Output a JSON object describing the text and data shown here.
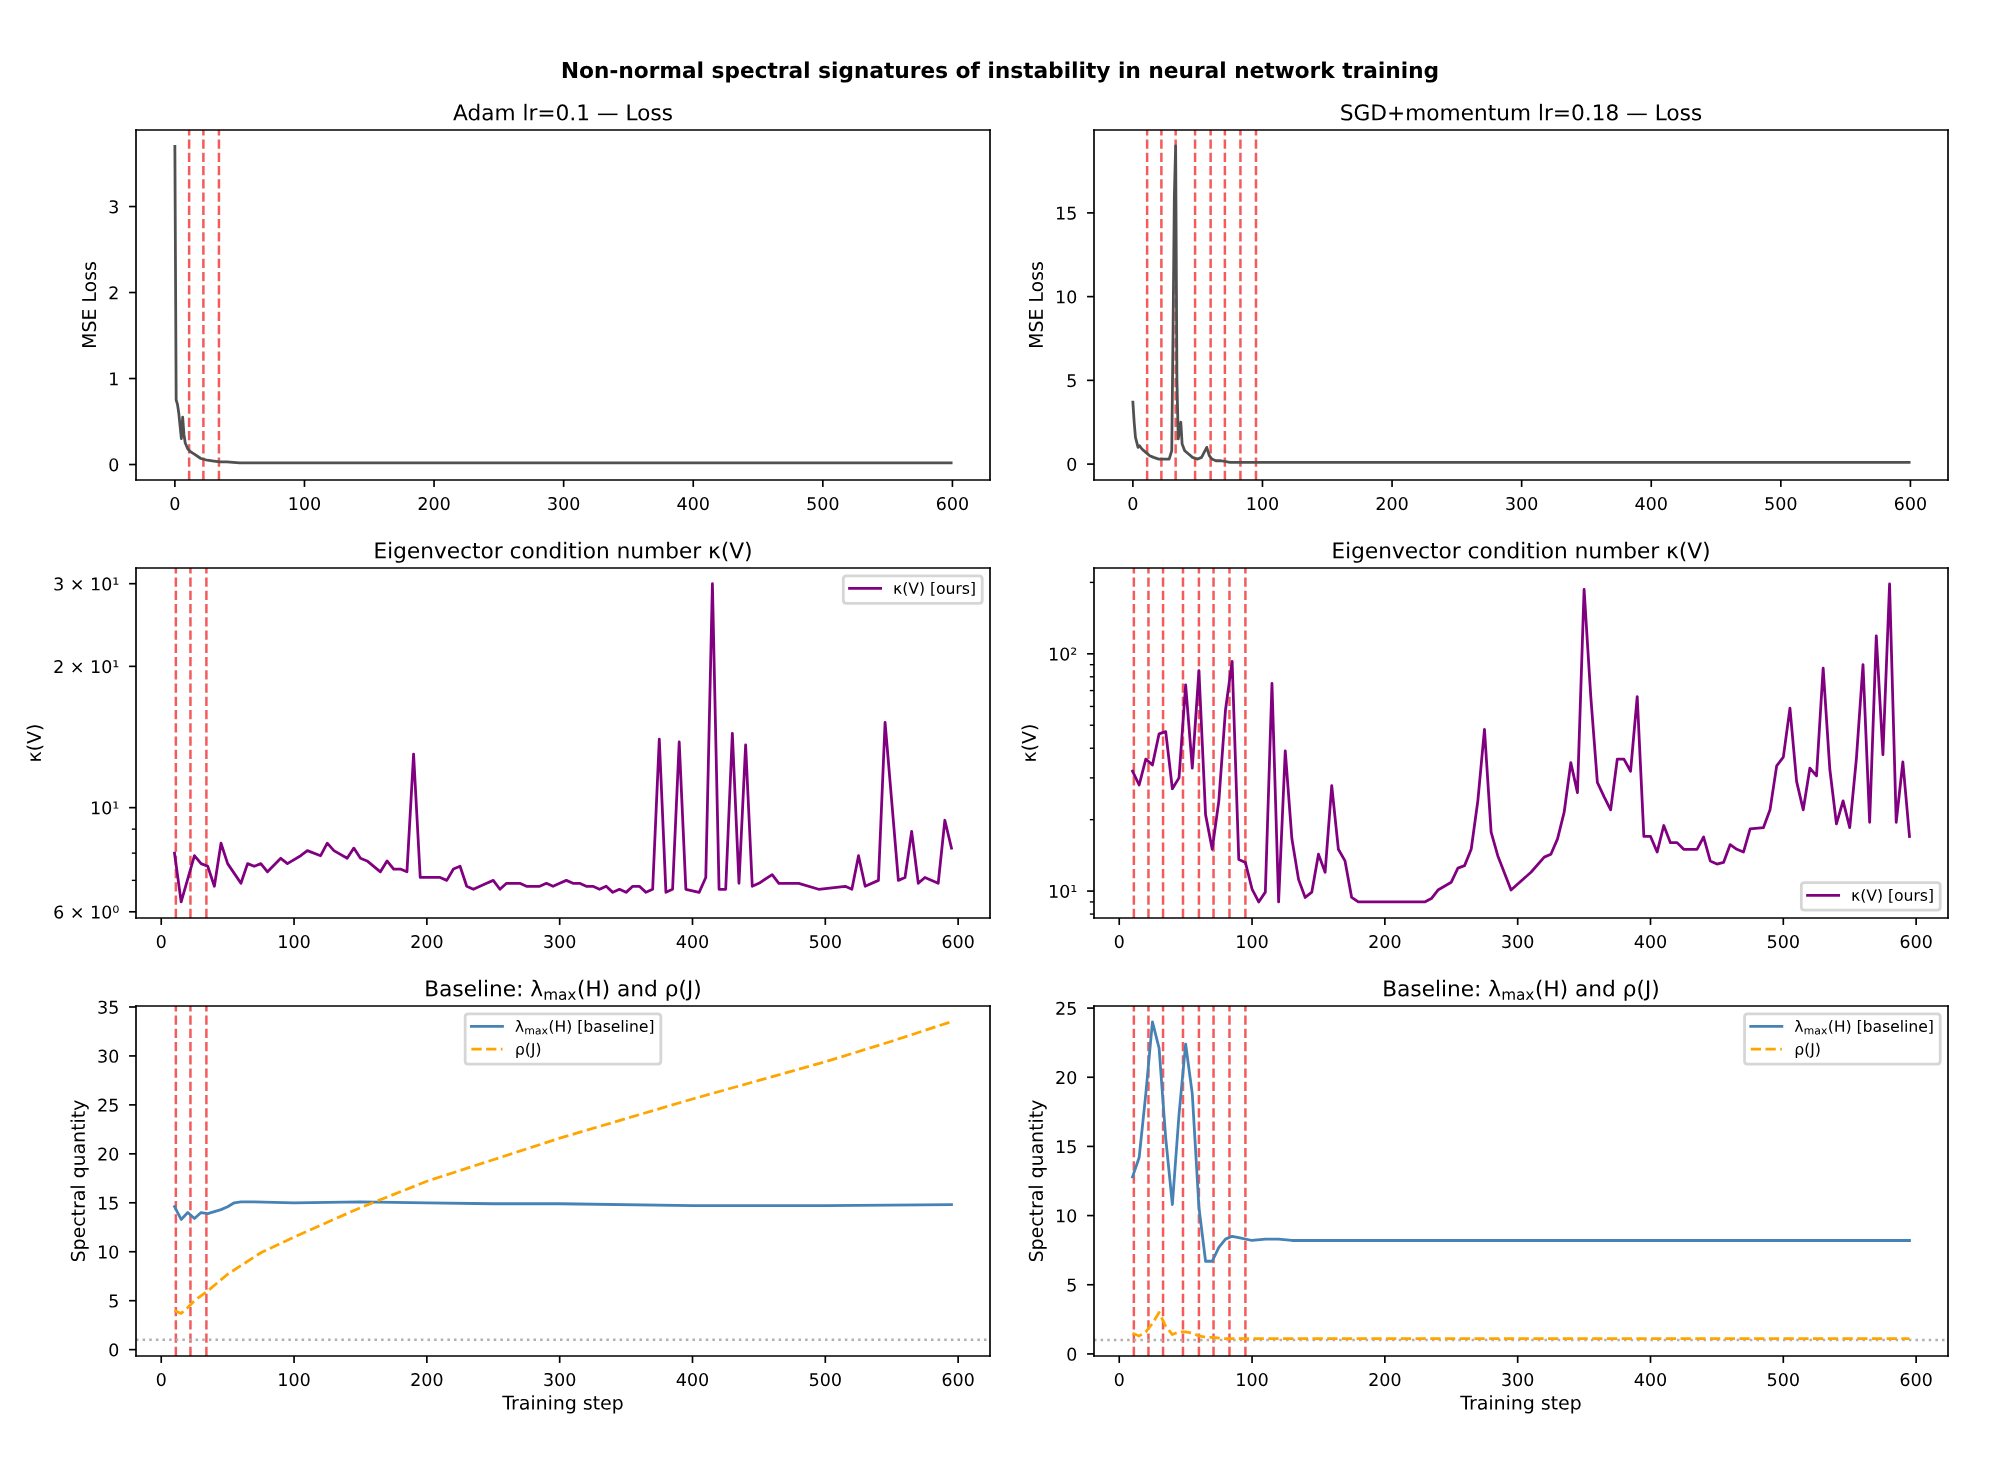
{
  "chart_data": [
    {
      "type": "other",
      "title": "Non-normal spectral signatures of instability in neural network training"
    },
    {
      "type": "line",
      "title": "Adam lr=0.1 — Loss",
      "ylabel": "MSE Loss",
      "color": "#505050",
      "x": [
        0,
        1,
        2,
        3,
        4,
        5,
        6,
        7,
        8,
        10,
        12,
        15,
        18,
        20,
        25,
        30,
        35,
        40,
        50,
        75,
        100,
        200,
        300,
        400,
        500,
        599
      ],
      "values": [
        3.7,
        0.75,
        0.7,
        0.6,
        0.45,
        0.3,
        0.55,
        0.35,
        0.25,
        0.18,
        0.15,
        0.12,
        0.09,
        0.07,
        0.05,
        0.04,
        0.03,
        0.03,
        0.02,
        0.02,
        0.02,
        0.02,
        0.02,
        0.02,
        0.02,
        0.02
      ],
      "xlim": [
        -30,
        629
      ],
      "xticks": [
        0,
        100,
        200,
        300,
        400,
        500,
        600
      ],
      "ylim": [
        -0.18,
        3.89
      ],
      "yticks": [
        0,
        1,
        2,
        3
      ],
      "ref_lines": [
        {
          "axis": "x",
          "value": 11,
          "color": "#f25c5c",
          "line_style": "dashed"
        },
        {
          "axis": "x",
          "value": 22,
          "color": "#f25c5c",
          "line_style": "dashed"
        },
        {
          "axis": "x",
          "value": 34,
          "color": "#f25c5c",
          "line_style": "dashed"
        }
      ]
    },
    {
      "type": "line",
      "title": "SGD+momentum lr=0.18 — Loss",
      "ylabel": "MSE Loss",
      "color": "#505050",
      "x": [
        0,
        1,
        2,
        3,
        4,
        5,
        7,
        10,
        13,
        16,
        20,
        24,
        28,
        30,
        31,
        32,
        33,
        34,
        35,
        36,
        37,
        38,
        40,
        43,
        46,
        50,
        53,
        55,
        57,
        59,
        61,
        64,
        68,
        75,
        90,
        100,
        200,
        300,
        400,
        500,
        599
      ],
      "values": [
        3.7,
        2.5,
        1.6,
        1.3,
        1.0,
        1.1,
        0.9,
        0.7,
        0.5,
        0.4,
        0.3,
        0.3,
        0.3,
        0.8,
        8,
        16,
        19,
        5,
        1.5,
        2.0,
        2.5,
        1.2,
        0.8,
        0.6,
        0.4,
        0.3,
        0.4,
        0.7,
        1.0,
        0.5,
        0.3,
        0.2,
        0.2,
        0.1,
        0.1,
        0.1,
        0.1,
        0.1,
        0.1,
        0.1,
        0.1
      ],
      "xlim": [
        -30,
        629
      ],
      "xticks": [
        0,
        100,
        200,
        300,
        400,
        500,
        600
      ],
      "ylim": [
        -0.95,
        19.95
      ],
      "yticks": [
        0,
        5,
        10,
        15
      ],
      "ref_lines": [
        {
          "axis": "x",
          "value": 11,
          "color": "#f25c5c",
          "line_style": "dashed"
        },
        {
          "axis": "x",
          "value": 22,
          "color": "#f25c5c",
          "line_style": "dashed"
        },
        {
          "axis": "x",
          "value": 33,
          "color": "#f25c5c",
          "line_style": "dashed"
        },
        {
          "axis": "x",
          "value": 48,
          "color": "#f25c5c",
          "line_style": "dashed"
        },
        {
          "axis": "x",
          "value": 60,
          "color": "#f25c5c",
          "line_style": "dashed"
        },
        {
          "axis": "x",
          "value": 71,
          "color": "#f25c5c",
          "line_style": "dashed"
        },
        {
          "axis": "x",
          "value": 83,
          "color": "#f25c5c",
          "line_style": "dashed"
        },
        {
          "axis": "x",
          "value": 95,
          "color": "#f25c5c",
          "line_style": "dashed"
        }
      ]
    },
    {
      "type": "line",
      "title": "Eigenvector condition number κ(V)",
      "ylabel": "κ(V)",
      "log": true,
      "legend": "top right",
      "x": [
        10,
        15,
        25,
        30,
        35,
        40,
        45,
        50,
        60,
        65,
        70,
        75,
        80,
        90,
        95,
        105,
        110,
        120,
        125,
        130,
        140,
        145,
        150,
        155,
        165,
        170,
        175,
        180,
        185,
        190,
        195,
        200,
        210,
        215,
        220,
        225,
        230,
        235,
        240,
        245,
        250,
        255,
        260,
        265,
        270,
        275,
        280,
        285,
        290,
        295,
        300,
        305,
        310,
        315,
        320,
        325,
        330,
        335,
        340,
        345,
        350,
        355,
        360,
        365,
        370,
        375,
        380,
        385,
        390,
        395,
        405,
        410,
        415,
        420,
        425,
        430,
        435,
        440,
        445,
        450,
        460,
        465,
        480,
        495,
        515,
        520,
        525,
        530,
        540,
        545,
        555,
        560,
        565,
        570,
        575,
        585,
        590,
        595
      ],
      "series": [
        {
          "name": "κ(V) [ours]",
          "color": "#800080",
          "values": [
            8.0,
            6.3,
            7.9,
            7.6,
            7.5,
            6.8,
            8.4,
            7.6,
            6.9,
            7.6,
            7.5,
            7.6,
            7.3,
            7.8,
            7.6,
            7.9,
            8.1,
            7.9,
            8.4,
            8.1,
            7.8,
            8.2,
            7.8,
            7.7,
            7.3,
            7.7,
            7.4,
            7.4,
            7.3,
            13,
            7.1,
            7.1,
            7.1,
            7.0,
            7.4,
            7.5,
            6.8,
            6.7,
            6.8,
            6.9,
            7.0,
            6.7,
            6.9,
            6.9,
            6.9,
            6.8,
            6.8,
            6.8,
            6.9,
            6.8,
            6.9,
            7.0,
            6.9,
            6.9,
            6.8,
            6.8,
            6.7,
            6.8,
            6.6,
            6.7,
            6.6,
            6.8,
            6.8,
            6.6,
            6.7,
            14,
            6.6,
            6.7,
            13.8,
            6.7,
            6.6,
            7.1,
            30,
            6.7,
            6.7,
            14.4,
            6.9,
            13.6,
            6.8,
            6.9,
            7.2,
            6.9,
            6.9,
            6.7,
            6.8,
            6.7,
            7.9,
            6.8,
            7.0,
            15.2,
            7.0,
            7.1,
            8.9,
            6.9,
            7.1,
            6.9,
            9.4,
            8.2
          ]
        }
      ],
      "xlim": [
        -19,
        624
      ],
      "xticks": [
        0,
        100,
        200,
        300,
        400,
        500,
        600
      ],
      "ylim": [
        5.82,
        32.4
      ],
      "yticks": [
        {
          "value": 6,
          "label": "6 × 10⁰"
        },
        {
          "value": 7,
          "label": null
        },
        {
          "value": 8,
          "label": null
        },
        {
          "value": 9,
          "label": null
        },
        {
          "value": 10,
          "label": "10¹"
        },
        {
          "value": 20,
          "label": "2 × 10¹"
        },
        {
          "value": 30,
          "label": "3 × 10¹"
        }
      ],
      "ref_lines": [
        {
          "axis": "x",
          "value": 11,
          "color": "#f25c5c",
          "line_style": "dashed"
        },
        {
          "axis": "x",
          "value": 22,
          "color": "#f25c5c",
          "line_style": "dashed"
        },
        {
          "axis": "x",
          "value": 34,
          "color": "#f25c5c",
          "line_style": "dashed"
        }
      ]
    },
    {
      "type": "line",
      "title": "Eigenvector condition number κ(V)",
      "ylabel": "κ(V)",
      "log": true,
      "legend": "bottom right",
      "x": [
        10,
        15,
        20,
        25,
        30,
        35,
        40,
        45,
        50,
        55,
        60,
        65,
        70,
        75,
        80,
        85,
        90,
        95,
        100,
        105,
        110,
        115,
        120,
        125,
        130,
        135,
        140,
        145,
        150,
        155,
        160,
        165,
        170,
        175,
        180,
        230,
        235,
        240,
        250,
        255,
        260,
        265,
        270,
        275,
        280,
        285,
        295,
        310,
        320,
        325,
        330,
        335,
        340,
        345,
        350,
        355,
        360,
        365,
        370,
        375,
        380,
        385,
        390,
        395,
        400,
        405,
        410,
        415,
        420,
        425,
        435,
        440,
        445,
        450,
        455,
        460,
        465,
        470,
        475,
        485,
        490,
        495,
        500,
        505,
        510,
        515,
        520,
        525,
        530,
        535,
        540,
        545,
        550,
        555,
        560,
        565,
        570,
        575,
        580,
        585,
        590,
        595
      ],
      "series": [
        {
          "name": "κ(V) [ours]",
          "color": "#800080",
          "values": [
            32,
            28,
            36,
            34,
            46,
            47,
            27,
            30,
            74,
            33,
            85,
            21,
            15,
            24,
            58,
            93,
            13.6,
            13.2,
            10.2,
            9.0,
            9.9,
            75,
            9.0,
            39,
            16.6,
            11.2,
            9.4,
            9.9,
            14.3,
            12,
            27.8,
            15,
            13.4,
            9.4,
            9.0,
            9.0,
            9.3,
            10.1,
            10.9,
            12.5,
            12.8,
            15,
            24,
            48,
            17.7,
            14.1,
            10.1,
            12,
            13.9,
            14.3,
            16.6,
            21.5,
            34.8,
            26,
            187,
            66.5,
            28.7,
            25,
            22,
            36,
            36,
            32,
            66,
            17,
            17,
            14.6,
            18.9,
            16,
            16,
            15,
            15,
            16.9,
            13.4,
            13.0,
            13.2,
            15.7,
            15,
            14.6,
            18.3,
            18.5,
            22,
            33.7,
            36.7,
            59,
            29,
            22,
            33,
            30.6,
            87,
            32.7,
            19.2,
            24,
            18.5,
            36,
            90,
            19.5,
            119,
            37.6,
            197,
            19.5,
            35,
            17
          ]
        }
      ],
      "xlim": [
        -19,
        624
      ],
      "xticks": [
        0,
        100,
        200,
        300,
        400,
        500,
        600
      ],
      "ylim": [
        7.7,
        230
      ],
      "yticks": [
        {
          "value": 8,
          "label": null
        },
        {
          "value": 9,
          "label": null
        },
        {
          "value": 10,
          "label": "10¹"
        },
        {
          "value": 20,
          "label": null
        },
        {
          "value": 30,
          "label": null
        },
        {
          "value": 40,
          "label": null
        },
        {
          "value": 50,
          "label": null
        },
        {
          "value": 60,
          "label": null
        },
        {
          "value": 70,
          "label": null
        },
        {
          "value": 80,
          "label": null
        },
        {
          "value": 90,
          "label": null
        },
        {
          "value": 100,
          "label": "10²"
        },
        {
          "value": 200,
          "label": null
        }
      ],
      "ref_lines": [
        {
          "axis": "x",
          "value": 11,
          "color": "#f25c5c",
          "line_style": "dashed"
        },
        {
          "axis": "x",
          "value": 22,
          "color": "#f25c5c",
          "line_style": "dashed"
        },
        {
          "axis": "x",
          "value": 33,
          "color": "#f25c5c",
          "line_style": "dashed"
        },
        {
          "axis": "x",
          "value": 48,
          "color": "#f25c5c",
          "line_style": "dashed"
        },
        {
          "axis": "x",
          "value": 60,
          "color": "#f25c5c",
          "line_style": "dashed"
        },
        {
          "axis": "x",
          "value": 71,
          "color": "#f25c5c",
          "line_style": "dashed"
        },
        {
          "axis": "x",
          "value": 83,
          "color": "#f25c5c",
          "line_style": "dashed"
        },
        {
          "axis": "x",
          "value": 95,
          "color": "#f25c5c",
          "line_style": "dashed"
        }
      ]
    },
    {
      "type": "line",
      "title": "Baseline: λ$_{max}$(H) and ρ(J)",
      "xlabel": "Training step",
      "ylabel": "Spectral quantity",
      "legend": "top",
      "series": [
        {
          "name": "λ$_{max}$(H) [baseline]",
          "color": "#4682b4",
          "x": [
            10,
            15,
            20,
            25,
            30,
            35,
            40,
            45,
            50,
            55,
            60,
            70,
            100,
            150,
            200,
            250,
            300,
            400,
            500,
            595
          ],
          "values": [
            14.6,
            13.3,
            14.0,
            13.4,
            14.0,
            13.9,
            14.1,
            14.3,
            14.6,
            15.0,
            15.1,
            15.1,
            15.0,
            15.1,
            15.0,
            14.9,
            14.9,
            14.7,
            14.7,
            14.8
          ]
        },
        {
          "name": "ρ(J)",
          "color": "#ffa500",
          "line_style": "dashed",
          "x": [
            10,
            15,
            20,
            25,
            35,
            50,
            75,
            100,
            150,
            200,
            250,
            300,
            350,
            400,
            450,
            500,
            550,
            595
          ],
          "values": [
            4.0,
            3.7,
            4.3,
            5.0,
            6.0,
            7.7,
            9.9,
            11.5,
            14.5,
            17.2,
            19.4,
            21.6,
            23.6,
            25.6,
            27.5,
            29.4,
            31.5,
            33.5
          ]
        }
      ],
      "xlim": [
        -19,
        624
      ],
      "xticks": [
        0,
        100,
        200,
        300,
        400,
        500,
        600
      ],
      "ylim": [
        -0.65,
        35.1
      ],
      "yticks": [
        0,
        5,
        10,
        15,
        20,
        25,
        30,
        35
      ],
      "ref_lines": [
        {
          "axis": "x",
          "value": 11,
          "color": "#f25c5c",
          "line_style": "dashed"
        },
        {
          "axis": "x",
          "value": 22,
          "color": "#f25c5c",
          "line_style": "dashed"
        },
        {
          "axis": "x",
          "value": 34,
          "color": "#f25c5c",
          "line_style": "dashed"
        },
        {
          "axis": "y",
          "value": 1,
          "color": "#b0b0b0",
          "line_style": "dotted"
        }
      ]
    },
    {
      "type": "line",
      "title": "Baseline: λ$_{max}$(H) and ρ(J)",
      "xlabel": "Training step",
      "ylabel": "Spectral quantity",
      "legend": "top right",
      "series": [
        {
          "name": "λ$_{max}$(H) [baseline]",
          "color": "#4682b4",
          "x": [
            10,
            15,
            20,
            25,
            30,
            35,
            40,
            45,
            50,
            55,
            60,
            65,
            70,
            75,
            80,
            85,
            90,
            100,
            110,
            120,
            130,
            595
          ],
          "values": [
            12.8,
            14.2,
            18.8,
            24.0,
            22.1,
            15.6,
            10.8,
            17.3,
            22.4,
            18.8,
            10.6,
            6.7,
            6.7,
            7.7,
            8.3,
            8.5,
            8.4,
            8.2,
            8.3,
            8.3,
            8.2,
            8.2
          ]
        },
        {
          "name": "ρ(J)",
          "color": "#ffa500",
          "line_style": "dashed",
          "x": [
            10,
            15,
            20,
            25,
            30,
            35,
            40,
            45,
            50,
            55,
            60,
            65,
            70,
            80,
            100,
            595
          ],
          "values": [
            1.5,
            1.3,
            1.6,
            2.2,
            3.0,
            2.0,
            1.4,
            1.6,
            1.6,
            1.5,
            1.3,
            1.2,
            1.2,
            1.1,
            1.1,
            1.1
          ]
        }
      ],
      "xlim": [
        -19,
        624
      ],
      "xticks": [
        0,
        100,
        200,
        300,
        400,
        500,
        600
      ],
      "ylim": [
        -0.15,
        25.15
      ],
      "yticks": [
        0,
        5,
        10,
        15,
        20,
        25
      ],
      "ref_lines": [
        {
          "axis": "x",
          "value": 11,
          "color": "#f25c5c",
          "line_style": "dashed"
        },
        {
          "axis": "x",
          "value": 22,
          "color": "#f25c5c",
          "line_style": "dashed"
        },
        {
          "axis": "x",
          "value": 33,
          "color": "#f25c5c",
          "line_style": "dashed"
        },
        {
          "axis": "x",
          "value": 48,
          "color": "#f25c5c",
          "line_style": "dashed"
        },
        {
          "axis": "x",
          "value": 60,
          "color": "#f25c5c",
          "line_style": "dashed"
        },
        {
          "axis": "x",
          "value": 71,
          "color": "#f25c5c",
          "line_style": "dashed"
        },
        {
          "axis": "x",
          "value": 83,
          "color": "#f25c5c",
          "line_style": "dashed"
        },
        {
          "axis": "x",
          "value": 95,
          "color": "#f25c5c",
          "line_style": "dashed"
        },
        {
          "axis": "y",
          "value": 1,
          "color": "#b0b0b0",
          "line_style": "dotted"
        }
      ]
    }
  ]
}
